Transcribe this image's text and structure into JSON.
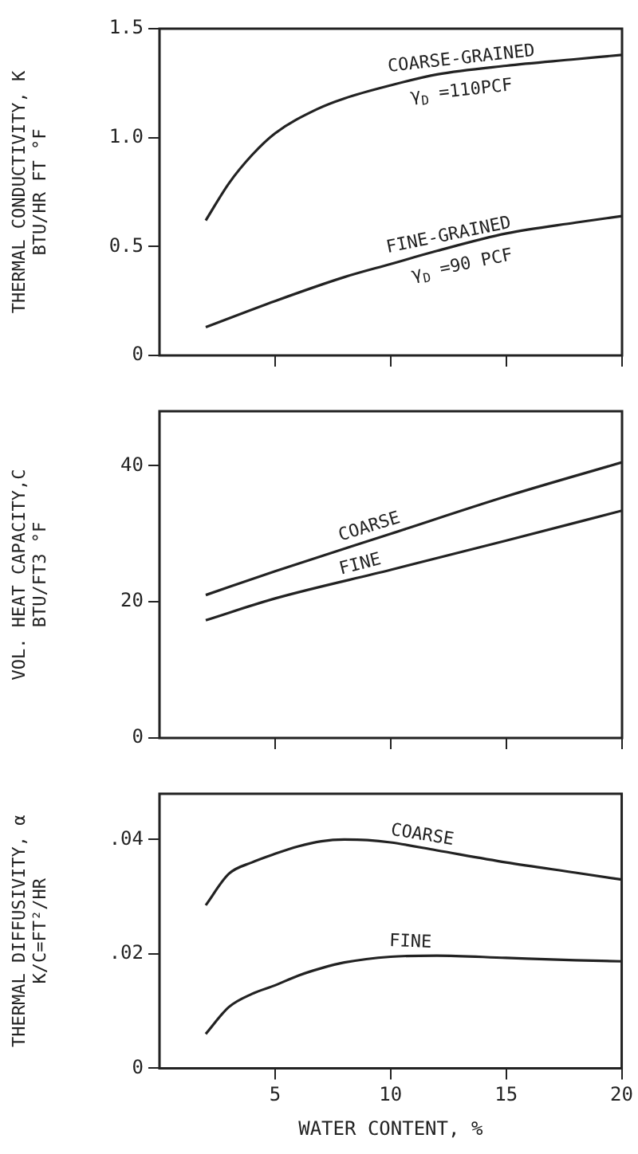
{
  "chart_data": [
    {
      "type": "line",
      "ylabel": "THERMAL CONDUCTIVITY, K\nBTU/HR FT °F",
      "xlim": [
        0,
        20
      ],
      "xticks": [
        5,
        10,
        15,
        20
      ],
      "ylim": [
        0,
        1.5
      ],
      "yticks": [
        0,
        {
          "value": 0.5,
          "label": "0.5"
        },
        {
          "value": 1,
          "label": "1.0"
        },
        {
          "value": 1.5,
          "label": "1.5"
        }
      ],
      "tick_labels": "y",
      "series": [
        {
          "name": "COARSE-GRAINED",
          "color": "#222222",
          "x": [
            2,
            3,
            4,
            5,
            6.8,
            8,
            10,
            12,
            15,
            18,
            20
          ],
          "values": [
            0.62,
            0.79,
            0.92,
            1.02,
            1.13,
            1.18,
            1.24,
            1.29,
            1.33,
            1.36,
            1.38
          ]
        },
        {
          "name": "FINE-GRAINED",
          "color": "#222222",
          "x": [
            2,
            5,
            8,
            10,
            12,
            15,
            18,
            20
          ],
          "values": [
            0.13,
            0.25,
            0.36,
            0.42,
            0.48,
            0.56,
            0.61,
            0.64
          ]
        }
      ],
      "annotations": [
        "γ$_{D}$ =110PCF",
        "γ$_{D}$ =90 PCF"
      ]
    },
    {
      "type": "line",
      "ylabel": "VOL. HEAT CAPACITY,C\nBTU/FT3 °F",
      "xlim": [
        0,
        20
      ],
      "xticks": [
        5,
        10,
        15,
        20
      ],
      "ylim": [
        0,
        48
      ],
      "yticks": [
        0,
        20,
        40
      ],
      "tick_labels": "y",
      "series": [
        {
          "name": "COARSE",
          "color": "#222222",
          "x": [
            2,
            5,
            10,
            15,
            20
          ],
          "values": [
            21,
            24.5,
            30,
            35.5,
            40.5
          ]
        },
        {
          "name": "FINE",
          "color": "#222222",
          "x": [
            2,
            5,
            10,
            15,
            20
          ],
          "values": [
            17.3,
            20.5,
            24.7,
            29,
            33.4
          ]
        }
      ]
    },
    {
      "type": "line",
      "ylabel": "THERMAL DIFFUSIVITY, α\nK/C=FT²/HR",
      "xlabel": "WATER CONTENT, %",
      "xlim": [
        0,
        20
      ],
      "xticks": [
        5,
        10,
        15,
        20
      ],
      "ylim": [
        0,
        0.048
      ],
      "yticks": [
        0,
        {
          "value": 0.02,
          "label": ".02"
        },
        {
          "value": 0.04,
          "label": ".04"
        }
      ],
      "series": [
        {
          "name": "COARSE",
          "color": "#222222",
          "x": [
            2,
            3,
            4,
            5,
            6,
            7,
            8,
            9,
            10,
            12,
            15,
            18,
            20
          ],
          "values": [
            0.0285,
            0.034,
            0.036,
            0.0375,
            0.0388,
            0.0397,
            0.04,
            0.0399,
            0.0395,
            0.0381,
            0.036,
            0.0342,
            0.033
          ]
        },
        {
          "name": "FINE",
          "color": "#222222",
          "x": [
            2,
            3,
            4,
            5,
            6,
            7,
            8,
            10,
            12,
            15,
            18,
            20
          ],
          "values": [
            0.006,
            0.0107,
            0.013,
            0.0145,
            0.0162,
            0.0175,
            0.0185,
            0.0195,
            0.0197,
            0.0193,
            0.0189,
            0.0187
          ]
        }
      ]
    }
  ]
}
